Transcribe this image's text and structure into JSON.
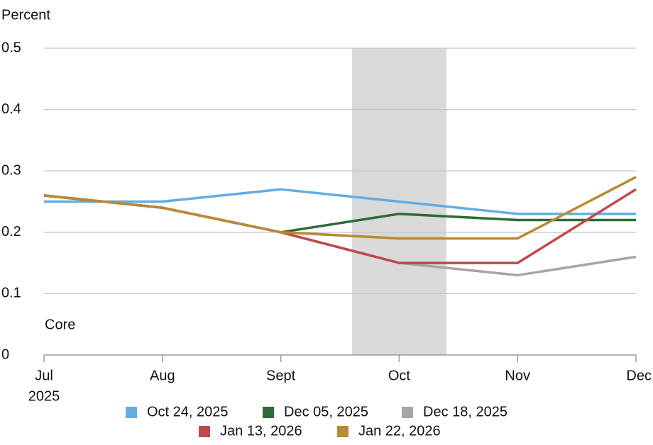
{
  "chart_data": {
    "type": "line",
    "y_label": "Percent",
    "annotation": "Core",
    "categories": [
      "Jul",
      "Aug",
      "Sept",
      "Oct",
      "Nov",
      "Dec"
    ],
    "year_label": "2025",
    "series": [
      {
        "name": "Oct 24, 2025",
        "color": "#62ade2",
        "values": [
          0.25,
          0.25,
          0.27,
          0.25,
          0.23,
          0.23
        ]
      },
      {
        "name": "Dec 05, 2025",
        "color": "#2e6b38",
        "values": [
          0.26,
          0.24,
          0.2,
          0.23,
          0.22,
          0.22
        ]
      },
      {
        "name": "Dec 18, 2025",
        "color": "#a5a5ab",
        "values": [
          0.26,
          0.24,
          0.2,
          0.15,
          0.13,
          0.16
        ]
      },
      {
        "name": "Jan 13, 2026",
        "color": "#c0494a",
        "values": [
          0.26,
          0.24,
          0.2,
          0.15,
          0.15,
          0.27
        ]
      },
      {
        "name": "Jan 22, 2026",
        "color": "#b98a32",
        "values": [
          0.26,
          0.24,
          0.2,
          0.19,
          0.19,
          0.29
        ]
      }
    ],
    "ylim": [
      0,
      0.5
    ],
    "yticks": [
      0,
      0.1,
      0.2,
      0.3,
      0.4,
      0.5
    ],
    "grid": true
  }
}
